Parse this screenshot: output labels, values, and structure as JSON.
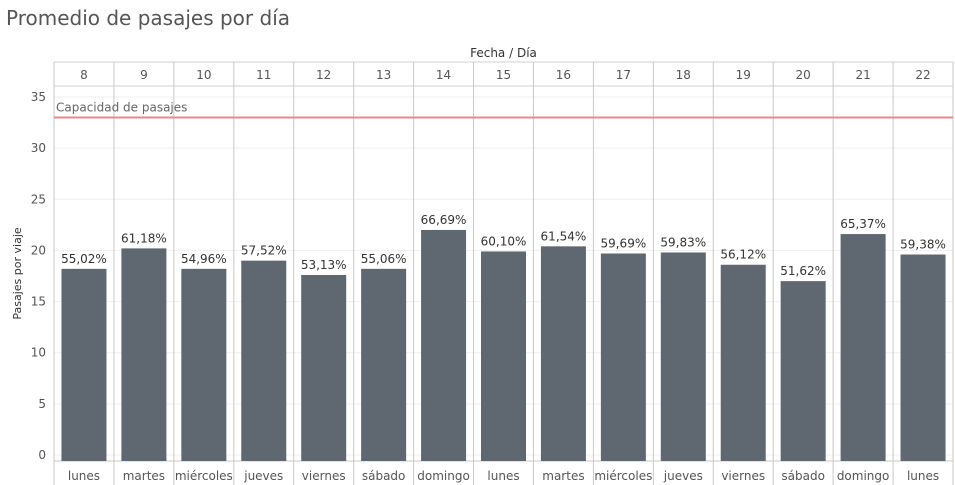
{
  "title": "Promedio de pasajes por día",
  "chart_data": {
    "type": "bar",
    "top_axis_label": "Fecha / Día",
    "ylabel": "Pasajes por viaje",
    "ylim": [
      0,
      35
    ],
    "yticks": [
      0,
      5,
      10,
      15,
      20,
      25,
      30,
      35
    ],
    "grid": true,
    "dates": [
      "8",
      "9",
      "10",
      "11",
      "12",
      "13",
      "14",
      "15",
      "16",
      "17",
      "18",
      "19",
      "20",
      "21",
      "22"
    ],
    "days": [
      "lunes",
      "martes",
      "miércoles",
      "jueves",
      "viernes",
      "sábado",
      "domingo",
      "lunes",
      "martes",
      "miércoles",
      "jueves",
      "viernes",
      "sábado",
      "domingo",
      "lunes"
    ],
    "values": [
      18.2,
      20.2,
      18.2,
      19.0,
      17.6,
      18.2,
      22.0,
      19.9,
      20.4,
      19.7,
      19.8,
      18.6,
      17.0,
      21.6,
      19.6
    ],
    "data_labels": [
      "55,02%",
      "61,18%",
      "54,96%",
      "57,52%",
      "53,13%",
      "55,06%",
      "66,69%",
      "60,10%",
      "61,54%",
      "59,69%",
      "59,83%",
      "56,12%",
      "51,62%",
      "65,37%",
      "59,38%"
    ],
    "reference_line": {
      "label": "Capacidad de pasajes",
      "value": 33,
      "color": "#e8898b"
    },
    "bar_color": "#5f6871"
  }
}
